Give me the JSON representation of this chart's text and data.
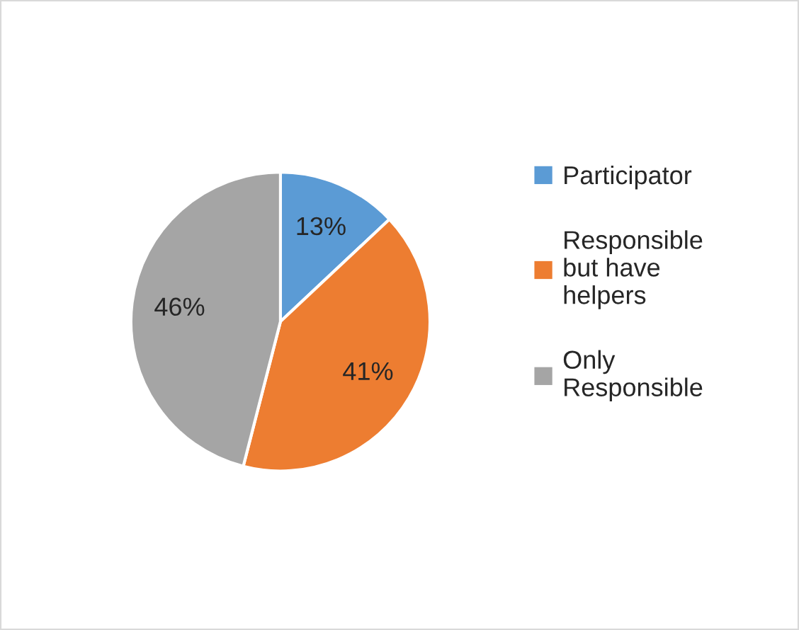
{
  "chart_data": {
    "type": "pie",
    "categories": [
      "Participator",
      "Responsible\nbut have\nhelpers",
      "Only\nResponsible"
    ],
    "values": [
      13,
      41,
      46
    ],
    "colors": [
      "#5b9bd5",
      "#ed7d31",
      "#a5a5a5"
    ],
    "value_labels": [
      "13%",
      "41%",
      "46%"
    ],
    "legend": "right"
  }
}
